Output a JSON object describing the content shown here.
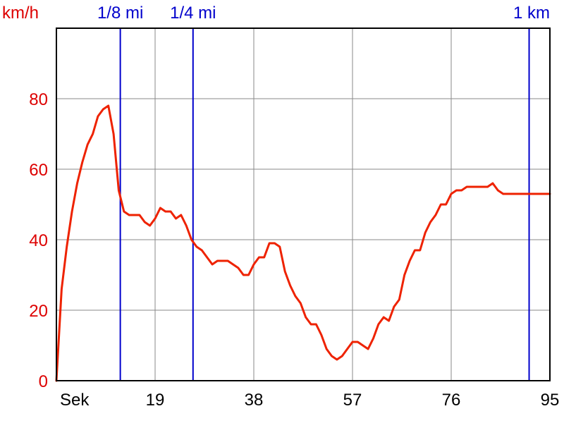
{
  "chart_data": {
    "type": "line",
    "ylabel": "km/h",
    "xlabel": "Sek",
    "xlim": [
      0,
      95
    ],
    "ylim": [
      0,
      100
    ],
    "x_ticks": [
      19,
      38,
      57,
      76,
      95
    ],
    "y_ticks": [
      0,
      20,
      40,
      60,
      80
    ],
    "grid": true,
    "colors": {
      "series": "#ee2200",
      "axis_labels": "#dd0000",
      "markers": "#0000cc",
      "grid": "#888888"
    },
    "markers": [
      {
        "label": "1/8 mi",
        "x": 12.3
      },
      {
        "label": "1/4 mi",
        "x": 26.3
      },
      {
        "label": "1 km",
        "x": 91.0
      }
    ],
    "series": [
      {
        "x": [
          0,
          1,
          2,
          3,
          4,
          5,
          6,
          7,
          8,
          9,
          10,
          11,
          12,
          13,
          14,
          15,
          16,
          17,
          18,
          19,
          20,
          21,
          22,
          23,
          24,
          25,
          26,
          27,
          28,
          29,
          30,
          31,
          32,
          33,
          34,
          35,
          36,
          37,
          38,
          39,
          40,
          41,
          42,
          43,
          44,
          45,
          46,
          47,
          48,
          49,
          50,
          51,
          52,
          53,
          54,
          55,
          56,
          57,
          58,
          59,
          60,
          61,
          62,
          63,
          64,
          65,
          66,
          67,
          68,
          69,
          70,
          71,
          72,
          73,
          74,
          75,
          76,
          77,
          78,
          79,
          80,
          81,
          82,
          83,
          84,
          85,
          86,
          87,
          88,
          89,
          90,
          91,
          92,
          93,
          94,
          95
        ],
        "values": [
          0,
          26,
          38,
          48,
          56,
          62,
          67,
          70,
          75,
          77,
          78,
          70,
          54,
          48,
          47,
          47,
          47,
          45,
          44,
          46,
          49,
          48,
          48,
          46,
          47,
          44,
          40,
          38,
          37,
          35,
          33,
          34,
          34,
          34,
          33,
          32,
          30,
          30,
          33,
          35,
          35,
          39,
          39,
          38,
          31,
          27,
          24,
          22,
          18,
          16,
          16,
          13,
          9,
          7,
          6,
          7,
          9,
          11,
          11,
          10,
          9,
          12,
          16,
          18,
          17,
          21,
          23,
          30,
          34,
          37,
          37,
          42,
          45,
          47,
          50,
          50,
          53,
          54,
          54,
          55,
          55,
          55,
          55,
          55,
          56,
          54,
          53,
          53,
          53,
          53,
          53,
          53,
          53,
          53,
          53,
          53
        ]
      }
    ]
  }
}
